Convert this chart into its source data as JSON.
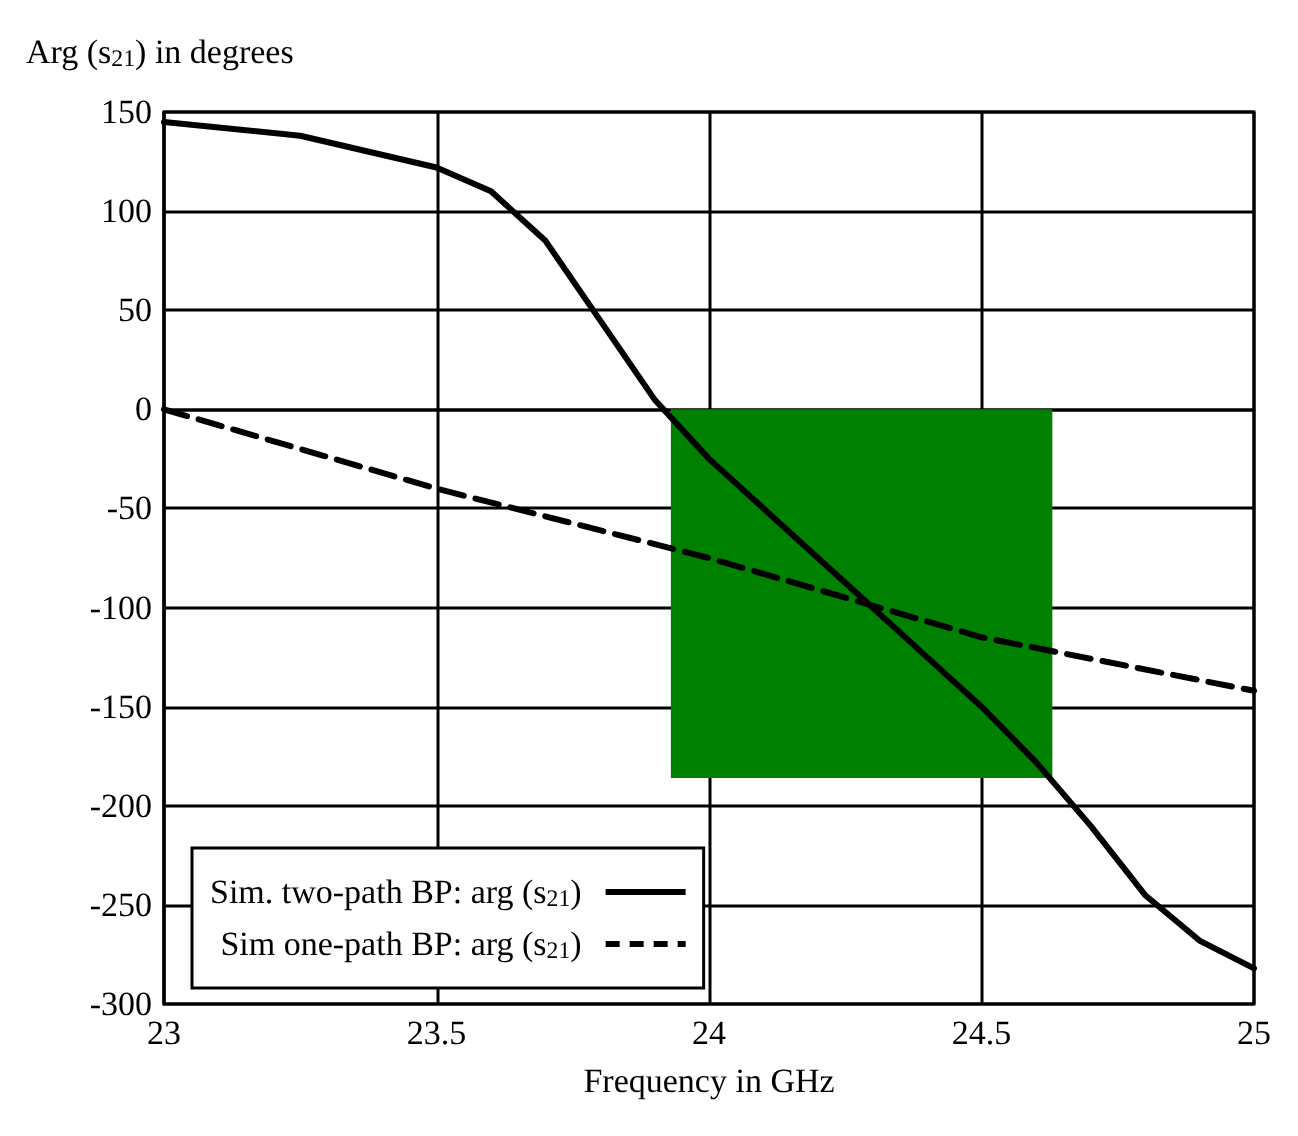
{
  "chart_data": {
    "type": "line",
    "ylabel": "Arg (s$_{21}$) in degrees",
    "xlabel": "Frequency in GHz",
    "xlim": [
      23,
      25
    ],
    "xticks": [
      23,
      23.5,
      24,
      24.5,
      25
    ],
    "ylim": [
      -300,
      150
    ],
    "yticks": [
      -300,
      -250,
      -200,
      -150,
      -100,
      -50,
      0,
      50,
      100,
      150
    ],
    "grid": true,
    "legend": "bottom left",
    "marker": "none",
    "series": [
      {
        "type": "area",
        "color": "#008000",
        "x": [
          23.93,
          24.63
        ],
        "values": [
          -186,
          -186
        ]
      },
      {
        "name": "Sim. two-path BP: arg (s$_{21}$)",
        "color": "#000000",
        "line_style": "solid",
        "x": [
          23,
          23.25,
          23.5,
          23.6,
          23.7,
          23.8,
          23.9,
          24,
          24.1,
          24.2,
          24.3,
          24.4,
          24.5,
          24.6,
          24.7,
          24.8,
          24.9,
          25
        ],
        "values": [
          145,
          138,
          122,
          110,
          85,
          45,
          5,
          -25,
          -50,
          -75,
          -100,
          -125,
          -150,
          -178,
          -210,
          -245,
          -268,
          -282
        ]
      },
      {
        "name": "Sim one-path BP: arg (s$_{21}$)",
        "color": "#000000",
        "line_style": "dashed",
        "x": [
          23,
          23.5,
          24,
          24.5,
          25
        ],
        "values": [
          0,
          -40,
          -75,
          -115,
          -142
        ]
      }
    ]
  }
}
